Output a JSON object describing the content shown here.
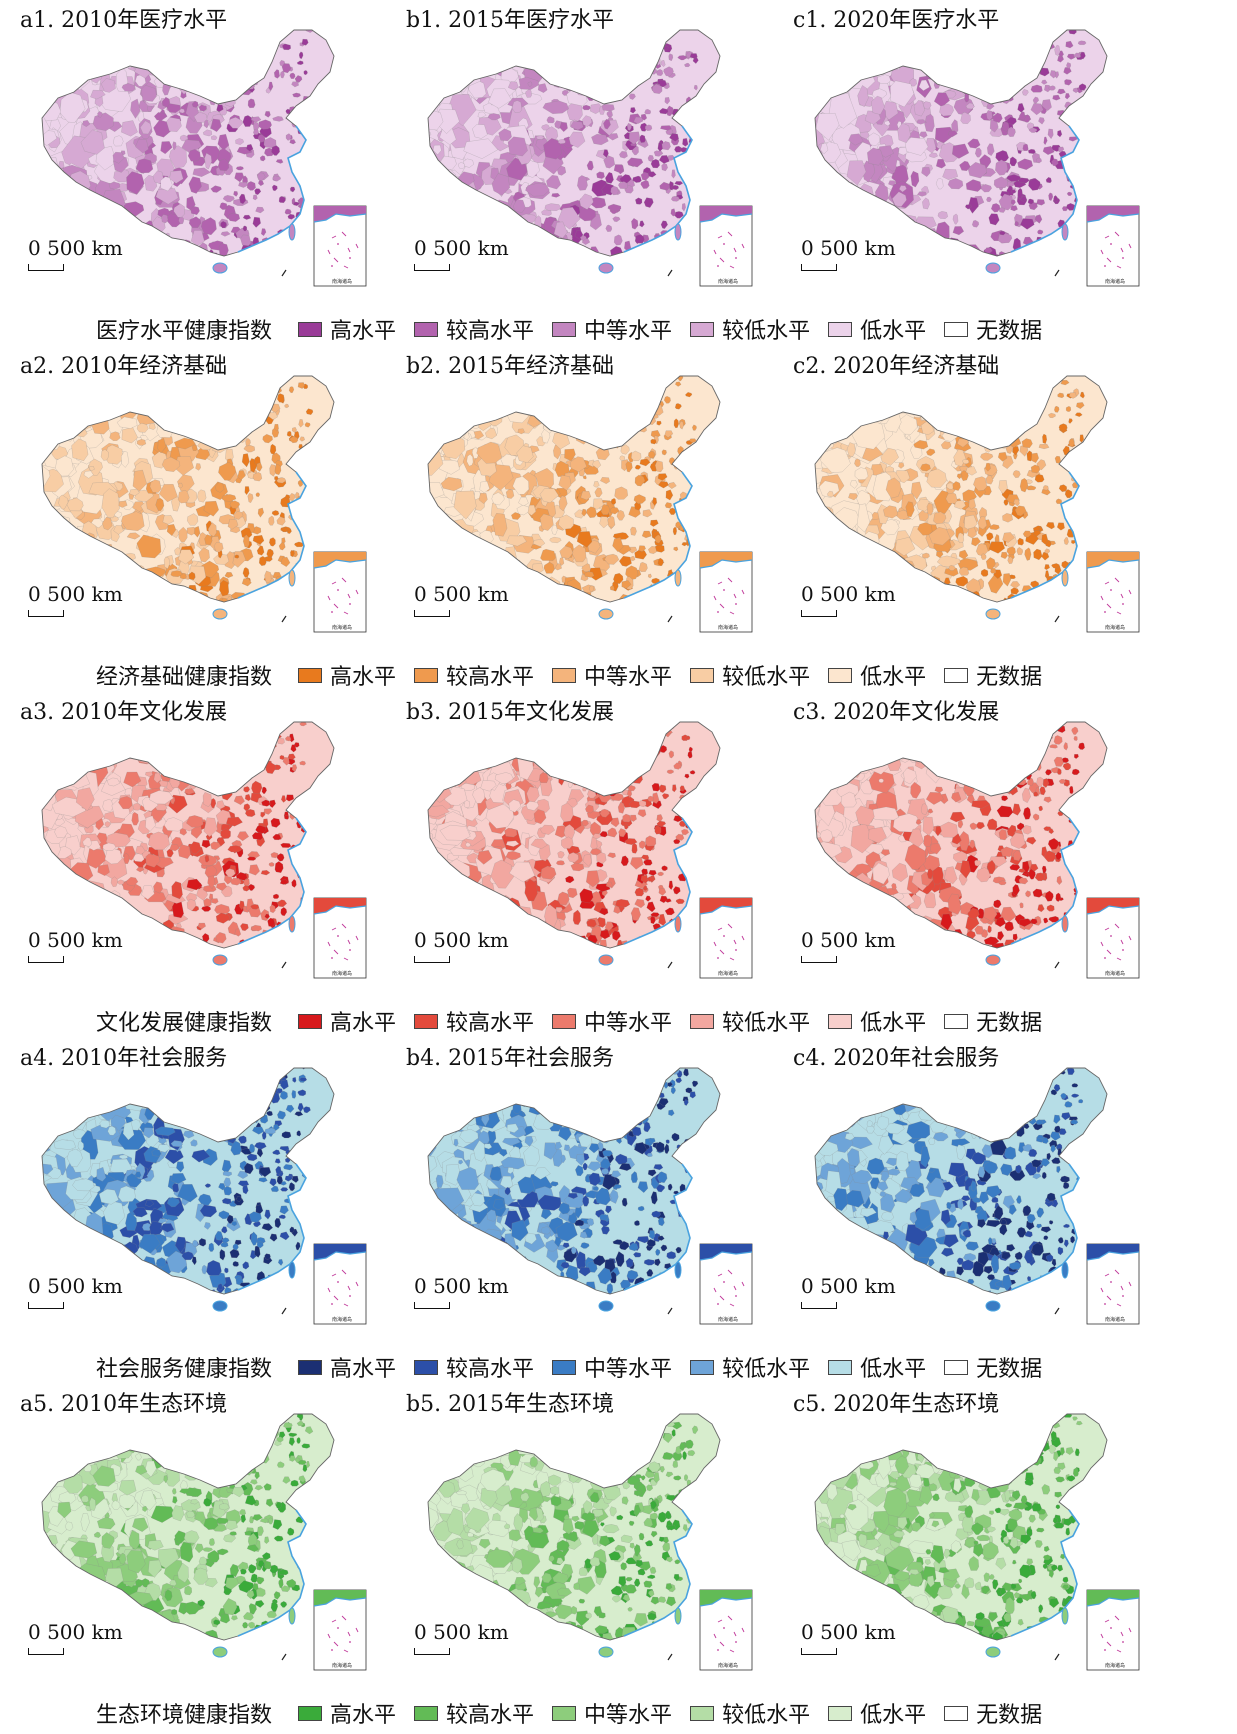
{
  "scale_label": "0  500 km",
  "inset_label": "南海诸岛",
  "rows": [
    {
      "legend_title": "医疗水平健康指数",
      "panels": [
        {
          "title": "a1. 2010年医疗水平"
        },
        {
          "title": "b1. 2015年医疗水平"
        },
        {
          "title": "c1. 2020年医疗水平"
        }
      ],
      "levels": [
        {
          "label": "高水平",
          "color": "#9a3b98"
        },
        {
          "label": "较高水平",
          "color": "#b263ae"
        },
        {
          "label": "中等水平",
          "color": "#c386c0"
        },
        {
          "label": "较低水平",
          "color": "#d6a9d3"
        },
        {
          "label": "低水平",
          "color": "#ecd3ea"
        },
        {
          "label": "无数据",
          "color": "#ffffff"
        }
      ]
    },
    {
      "legend_title": "经济基础健康指数",
      "panels": [
        {
          "title": "a2. 2010年经济基础"
        },
        {
          "title": "b2. 2015年经济基础"
        },
        {
          "title": "c2. 2020年经济基础"
        }
      ],
      "levels": [
        {
          "label": "高水平",
          "color": "#e87a1e"
        },
        {
          "label": "较高水平",
          "color": "#ef9a4e"
        },
        {
          "label": "中等水平",
          "color": "#f4b47c"
        },
        {
          "label": "较低水平",
          "color": "#f8cda4"
        },
        {
          "label": "低水平",
          "color": "#fce6cf"
        },
        {
          "label": "无数据",
          "color": "#ffffff"
        }
      ]
    },
    {
      "legend_title": "文化发展健康指数",
      "panels": [
        {
          "title": "a3. 2010年文化发展"
        },
        {
          "title": "b3. 2015年文化发展"
        },
        {
          "title": "c3. 2020年文化发展"
        }
      ],
      "levels": [
        {
          "label": "高水平",
          "color": "#d7191c"
        },
        {
          "label": "较高水平",
          "color": "#e34a3c"
        },
        {
          "label": "中等水平",
          "color": "#ec7a6c"
        },
        {
          "label": "较低水平",
          "color": "#f2a7a0"
        },
        {
          "label": "低水平",
          "color": "#f8cfcc"
        },
        {
          "label": "无数据",
          "color": "#ffffff"
        }
      ]
    },
    {
      "legend_title": "社会服务健康指数",
      "panels": [
        {
          "title": "a4. 2010年社会服务"
        },
        {
          "title": "b4. 2015年社会服务"
        },
        {
          "title": "c4. 2020年社会服务"
        }
      ],
      "levels": [
        {
          "label": "高水平",
          "color": "#1b2f73"
        },
        {
          "label": "较高水平",
          "color": "#2c4fa8"
        },
        {
          "label": "中等水平",
          "color": "#3a7cc4"
        },
        {
          "label": "较低水平",
          "color": "#6ea4d8"
        },
        {
          "label": "低水平",
          "color": "#b6dde6"
        },
        {
          "label": "无数据",
          "color": "#ffffff"
        }
      ]
    },
    {
      "legend_title": "生态环境健康指数",
      "panels": [
        {
          "title": "a5. 2010年生态环境"
        },
        {
          "title": "b5. 2015年生态环境"
        },
        {
          "title": "c5. 2020年生态环境"
        }
      ],
      "levels": [
        {
          "label": "高水平",
          "color": "#3aab3a"
        },
        {
          "label": "较高水平",
          "color": "#62bb56"
        },
        {
          "label": "中等水平",
          "color": "#8dcd7c"
        },
        {
          "label": "较低水平",
          "color": "#b4dda6"
        },
        {
          "label": "低水平",
          "color": "#d7edcd"
        },
        {
          "label": "无数据",
          "color": "#ffffff"
        }
      ]
    }
  ]
}
